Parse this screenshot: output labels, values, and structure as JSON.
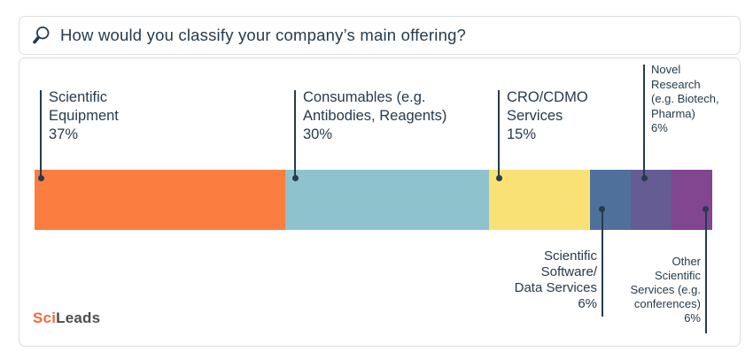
{
  "header": {
    "title": "How would you classify your company’s main offering?",
    "icon": "magnifier"
  },
  "chart_data": {
    "type": "bar",
    "variant": "horizontal-stacked-single-bar",
    "title": "How would you classify your company’s main offering?",
    "unit": "percent",
    "total": 100,
    "categories": [
      "Scientific Equipment",
      "Consumables (e.g. Antibodies, Reagents)",
      "CRO/CDMO Services",
      "Scientific Software/Data Services",
      "Novel Research (e.g. Biotech, Pharma)",
      "Other Scientific Services (e.g. conferences)"
    ],
    "values": [
      37,
      30,
      15,
      6,
      6,
      6
    ],
    "colors": [
      "#FB7D40",
      "#8EC3CE",
      "#FAE175",
      "#50709C",
      "#645C92",
      "#82458F"
    ],
    "legend": "callout-labels-with-leader-lines",
    "grid": false
  },
  "callouts": [
    {
      "category": "Scientific Equipment",
      "lines": [
        "Scientific",
        "Equipment",
        "37%"
      ],
      "position": "above"
    },
    {
      "category": "Consumables (e.g. Antibodies, Reagents)",
      "lines": [
        "Consumables (e.g.",
        "Antibodies, Reagents)",
        "30%"
      ],
      "position": "above"
    },
    {
      "category": "CRO/CDMO Services",
      "lines": [
        "CRO/CDMO",
        "Services",
        "15%"
      ],
      "position": "above"
    },
    {
      "category": "Novel Research (e.g. Biotech, Pharma)",
      "lines": [
        "Novel",
        "Research",
        "(e.g. Biotech,",
        "Pharma)",
        "6%"
      ],
      "position": "above"
    },
    {
      "category": "Scientific Software/Data Services",
      "lines": [
        "Scientific",
        "Software/",
        "Data Services",
        "6%"
      ],
      "position": "below"
    },
    {
      "category": "Other Scientific Services (e.g. conferences)",
      "lines": [
        "Other",
        "Scientific",
        "Services (e.g.",
        "conferences)",
        "6%"
      ],
      "position": "below"
    }
  ],
  "logo": {
    "sci": "Sci",
    "leads": "Leads",
    "sci_color": "#F16B3B",
    "leads_color": "#4D4D4D"
  },
  "colors": {
    "text": "#253B4E",
    "leader_line": "#253B4E",
    "card_border": "#DCDEE0",
    "background": "#FFFFFF"
  }
}
